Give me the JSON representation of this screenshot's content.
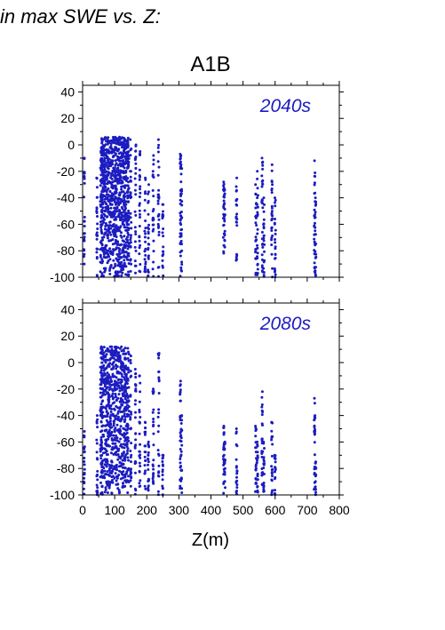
{
  "header_text": "in max SWE vs. Z:",
  "colors": {
    "points": "#1c1cc0",
    "panel_label": "#1c1cc0",
    "axis": "#000000"
  },
  "chart_data": [
    {
      "type": "scatter",
      "title": "A1B",
      "panel_label": "2040s",
      "xlabel": "",
      "ylabel": "",
      "xlim": [
        0,
        800
      ],
      "ylim": [
        -100,
        45
      ],
      "yticks": [
        -100,
        -80,
        -60,
        -40,
        -20,
        0,
        20,
        40
      ],
      "xticks": [
        0,
        100,
        200,
        300,
        400,
        500,
        600,
        700,
        800
      ],
      "x_tick_labels_shown": false,
      "grid": false,
      "columns": [
        {
          "x": 5,
          "ymin": -100,
          "ymax": -10,
          "n": 25
        },
        {
          "x": 45,
          "ymin": -100,
          "ymax": -25,
          "n": 25
        },
        {
          "x": 60,
          "ymin": -100,
          "ymax": 4,
          "n": 30
        },
        {
          "x": 150,
          "ymin": -100,
          "ymax": 4,
          "n": 30
        },
        {
          "x": 165,
          "ymin": -100,
          "ymax": 0,
          "n": 28
        },
        {
          "x": 178,
          "ymin": -100,
          "ymax": -5,
          "n": 28
        },
        {
          "x": 195,
          "ymin": -100,
          "ymax": -25,
          "n": 24
        },
        {
          "x": 205,
          "ymin": -100,
          "ymax": -30,
          "n": 24
        },
        {
          "x": 220,
          "ymin": -100,
          "ymax": -8,
          "n": 26
        },
        {
          "x": 237,
          "ymin": -100,
          "ymax": 4,
          "n": 28
        },
        {
          "x": 250,
          "ymin": -100,
          "ymax": -45,
          "n": 20
        },
        {
          "x": 305,
          "ymin": -100,
          "ymax": -7,
          "n": 30
        },
        {
          "x": 308,
          "ymin": -100,
          "ymax": -15,
          "n": 26
        },
        {
          "x": 440,
          "ymin": -82,
          "ymax": -28,
          "n": 22
        },
        {
          "x": 443,
          "ymin": -80,
          "ymax": -34,
          "n": 18
        },
        {
          "x": 480,
          "ymin": -88,
          "ymax": -25,
          "n": 22
        },
        {
          "x": 540,
          "ymin": -100,
          "ymax": -30,
          "n": 24
        },
        {
          "x": 545,
          "ymin": -100,
          "ymax": -20,
          "n": 24
        },
        {
          "x": 560,
          "ymin": -100,
          "ymax": -10,
          "n": 28
        },
        {
          "x": 565,
          "ymin": -100,
          "ymax": -40,
          "n": 22
        },
        {
          "x": 590,
          "ymin": -100,
          "ymax": -15,
          "n": 26
        },
        {
          "x": 600,
          "ymin": -100,
          "ymax": -40,
          "n": 22
        },
        {
          "x": 723,
          "ymin": -100,
          "ymax": -12,
          "n": 28
        },
        {
          "x": 726,
          "ymin": -100,
          "ymax": -40,
          "n": 20
        }
      ],
      "dense_band": {
        "xmin": 55,
        "xmax": 145,
        "ymin": -100,
        "ymax": 6,
        "n": 900
      }
    },
    {
      "type": "scatter",
      "title": "",
      "panel_label": "2080s",
      "xlabel": "Z(m)",
      "ylabel": "",
      "xlim": [
        0,
        800
      ],
      "ylim": [
        -100,
        45
      ],
      "yticks": [
        -100,
        -80,
        -60,
        -40,
        -20,
        0,
        20,
        40
      ],
      "xticks": [
        0,
        100,
        200,
        300,
        400,
        500,
        600,
        700,
        800
      ],
      "x_tick_labels_shown": true,
      "grid": false,
      "columns": [
        {
          "x": 5,
          "ymin": -100,
          "ymax": -52,
          "n": 20
        },
        {
          "x": 45,
          "ymin": -100,
          "ymax": -40,
          "n": 24
        },
        {
          "x": 60,
          "ymin": -100,
          "ymax": 8,
          "n": 30
        },
        {
          "x": 150,
          "ymin": -100,
          "ymax": 5,
          "n": 30
        },
        {
          "x": 165,
          "ymin": -100,
          "ymax": -5,
          "n": 28
        },
        {
          "x": 178,
          "ymin": -100,
          "ymax": -10,
          "n": 26
        },
        {
          "x": 195,
          "ymin": -100,
          "ymax": -45,
          "n": 22
        },
        {
          "x": 205,
          "ymin": -100,
          "ymax": -60,
          "n": 20
        },
        {
          "x": 220,
          "ymin": -100,
          "ymax": -20,
          "n": 24
        },
        {
          "x": 237,
          "ymin": -100,
          "ymax": 7,
          "n": 26
        },
        {
          "x": 250,
          "ymin": -100,
          "ymax": -70,
          "n": 16
        },
        {
          "x": 305,
          "ymin": -100,
          "ymax": -14,
          "n": 28
        },
        {
          "x": 308,
          "ymin": -100,
          "ymax": -40,
          "n": 22
        },
        {
          "x": 440,
          "ymin": -100,
          "ymax": -48,
          "n": 22
        },
        {
          "x": 443,
          "ymin": -100,
          "ymax": -60,
          "n": 18
        },
        {
          "x": 480,
          "ymin": -100,
          "ymax": -50,
          "n": 20
        },
        {
          "x": 540,
          "ymin": -100,
          "ymax": -48,
          "n": 22
        },
        {
          "x": 545,
          "ymin": -100,
          "ymax": -60,
          "n": 18
        },
        {
          "x": 560,
          "ymin": -100,
          "ymax": -22,
          "n": 26
        },
        {
          "x": 565,
          "ymin": -100,
          "ymax": -60,
          "n": 18
        },
        {
          "x": 590,
          "ymin": -100,
          "ymax": -45,
          "n": 22
        },
        {
          "x": 600,
          "ymin": -100,
          "ymax": -70,
          "n": 16
        },
        {
          "x": 723,
          "ymin": -100,
          "ymax": -27,
          "n": 24
        },
        {
          "x": 726,
          "ymin": -100,
          "ymax": -75,
          "n": 14
        }
      ],
      "dense_band": {
        "xmin": 55,
        "xmax": 145,
        "ymin": -100,
        "ymax": 12,
        "n": 750
      }
    }
  ]
}
